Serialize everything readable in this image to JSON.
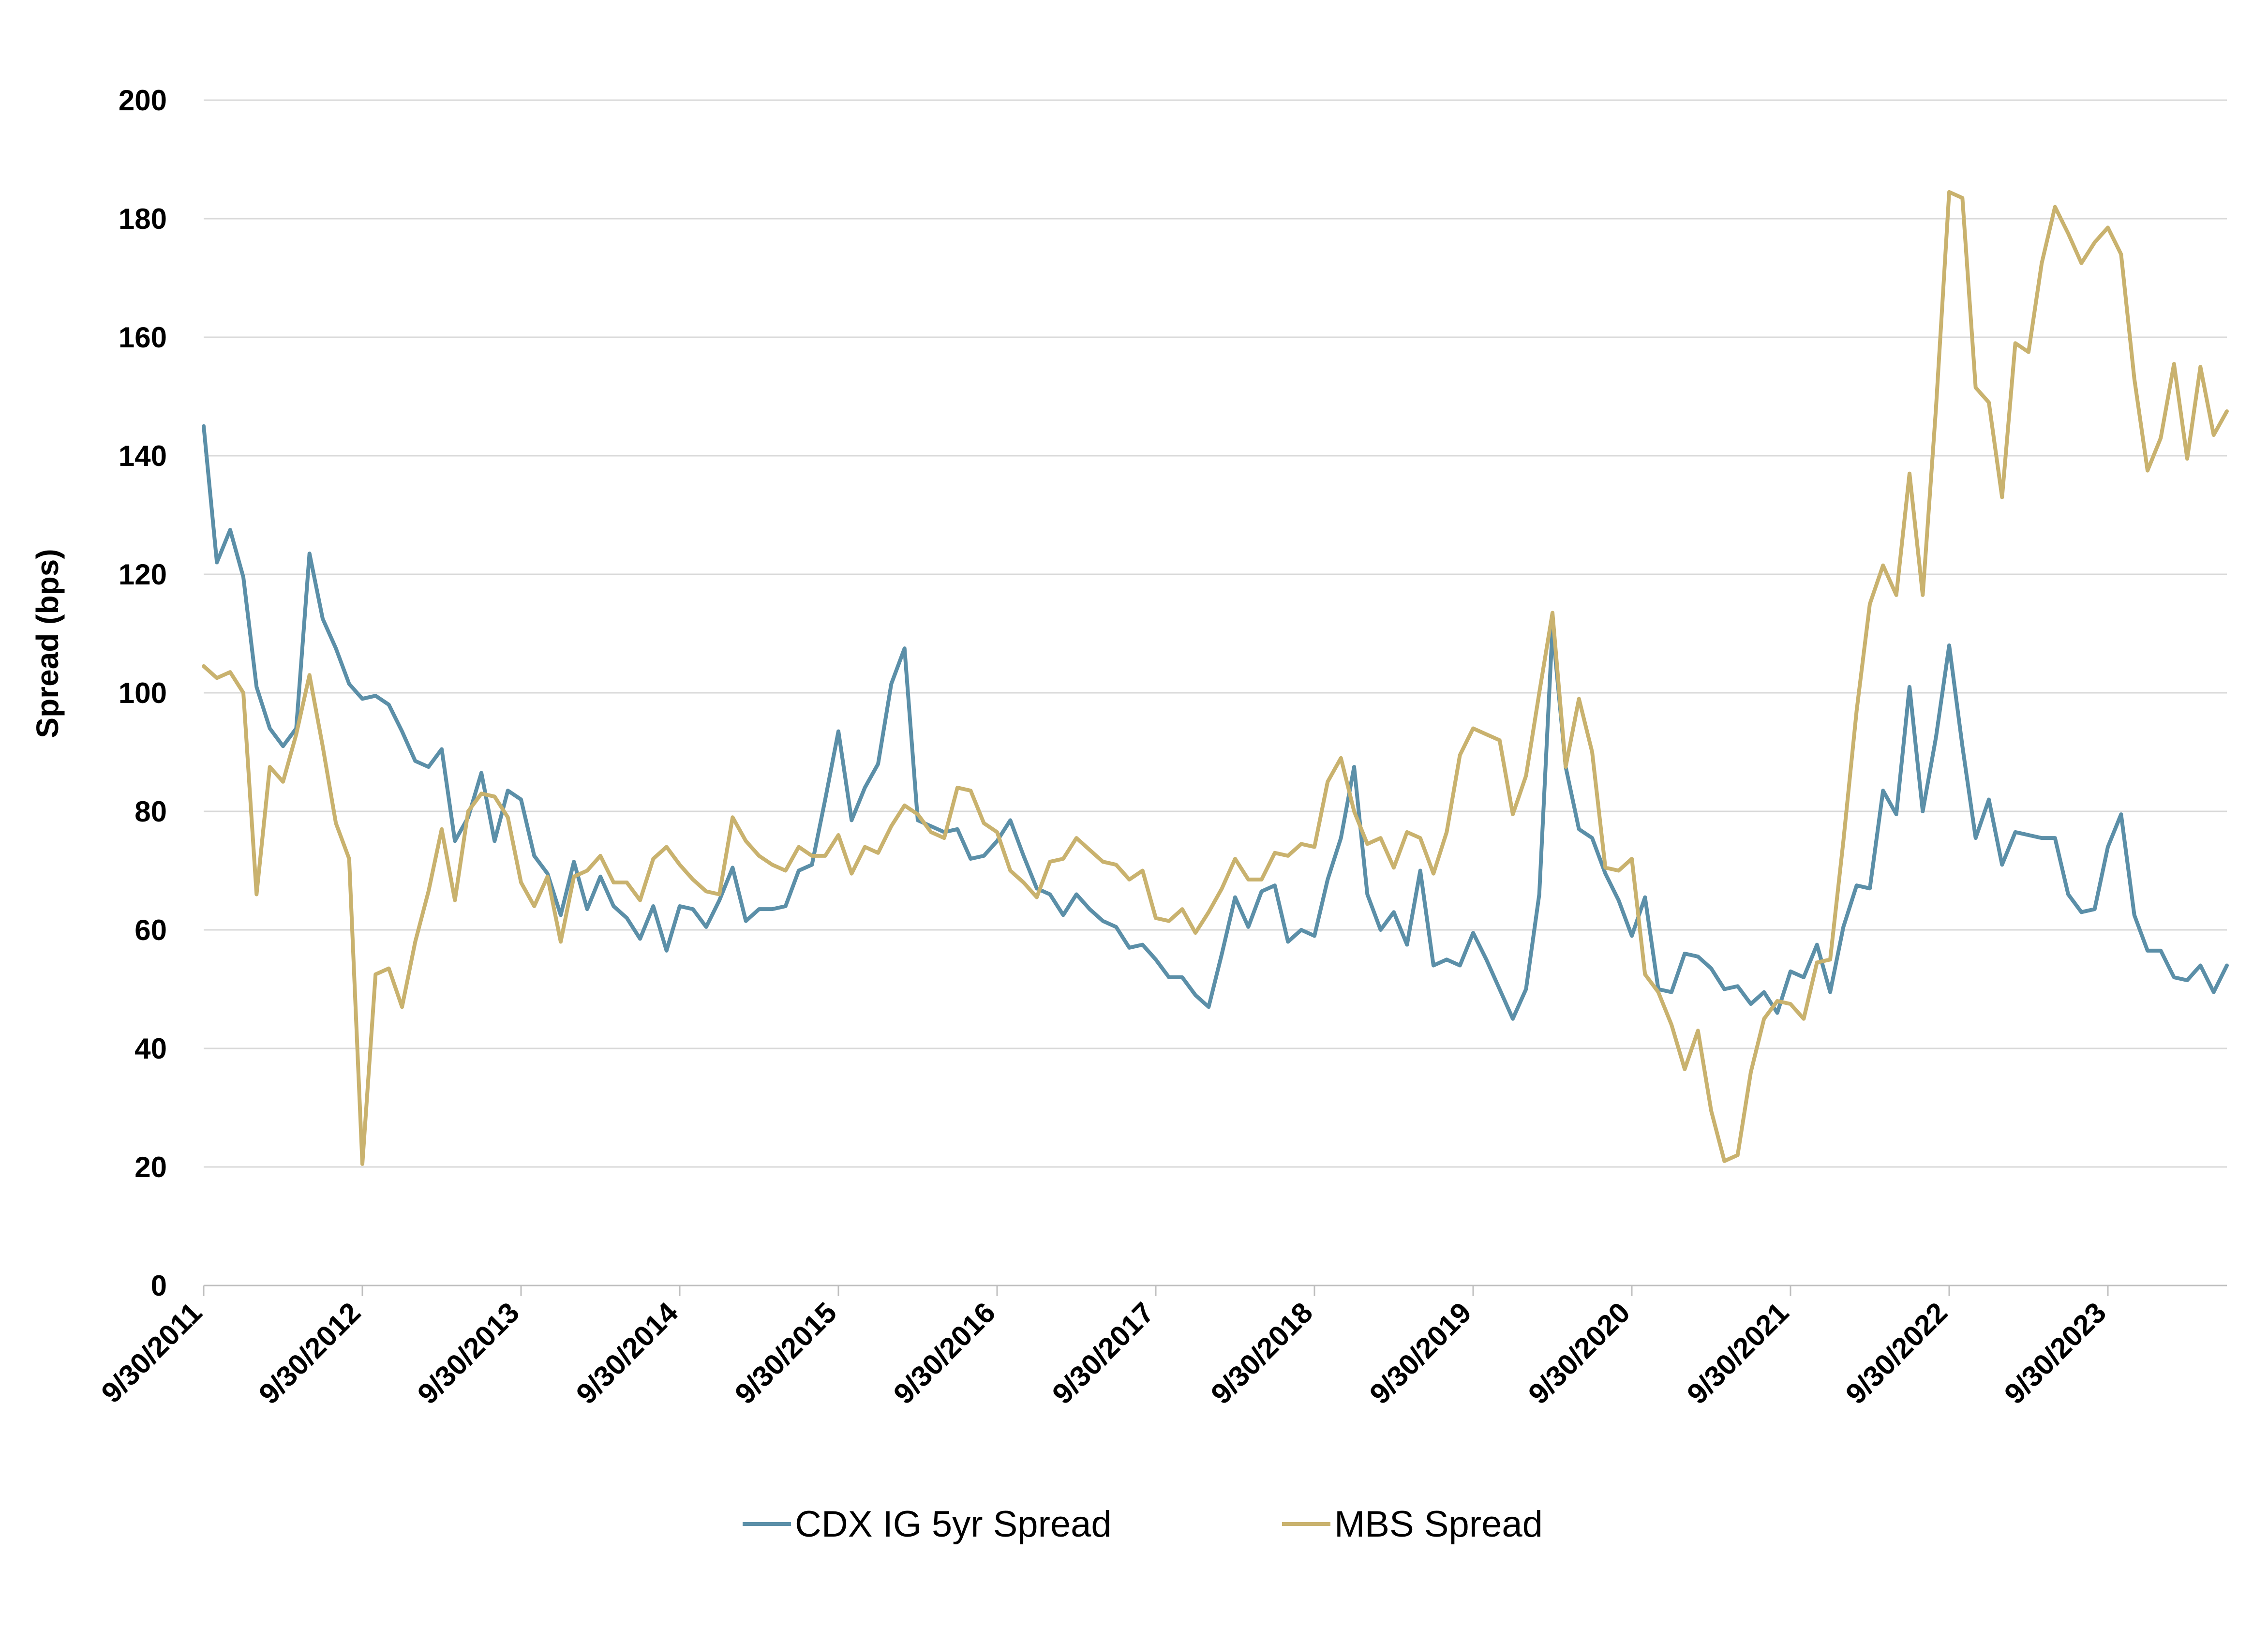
{
  "chart_data": {
    "type": "line",
    "title": "",
    "xlabel": "",
    "ylabel": "Spread (bps)",
    "ylim": [
      0,
      200
    ],
    "yticks": [
      0,
      20,
      40,
      60,
      80,
      100,
      120,
      140,
      160,
      180,
      200
    ],
    "y_tick_labels": [
      "0",
      "20",
      "40",
      "60",
      "80",
      "100",
      "120",
      "140",
      "160",
      "180",
      "200"
    ],
    "x_tick_labels": [
      "9/30/2011",
      "9/30/2012",
      "9/30/2013",
      "9/30/2014",
      "9/30/2015",
      "9/30/2016",
      "9/30/2017",
      "9/30/2018",
      "9/30/2019",
      "9/30/2020",
      "9/30/2021",
      "9/30/2022",
      "9/30/2023"
    ],
    "x_start": "9/30/2011",
    "frequency": "monthly",
    "grid": true,
    "legend_position": "bottom",
    "series": [
      {
        "name": "CDX IG 5yr Spread",
        "color": "#5b8fa8",
        "values": [
          145.0,
          122.0,
          127.5,
          119.5,
          101.0,
          94.0,
          91.0,
          94.0,
          123.5,
          112.5,
          107.5,
          101.5,
          99.0,
          99.5,
          98.0,
          93.5,
          88.5,
          87.5,
          90.5,
          75.0,
          79.0,
          86.5,
          75.0,
          83.5,
          82.0,
          72.5,
          69.5,
          62.5,
          71.5,
          63.5,
          69.0,
          64.0,
          62.0,
          58.5,
          64.0,
          56.5,
          64.0,
          63.5,
          60.5,
          65.0,
          70.5,
          61.5,
          63.5,
          63.5,
          64.0,
          70.0,
          71.0,
          82.0,
          93.5,
          78.5,
          84.0,
          88.0,
          101.5,
          107.5,
          78.5,
          77.5,
          76.5,
          77.0,
          72.0,
          72.5,
          75.0,
          78.5,
          72.5,
          67.0,
          66.0,
          62.5,
          66.0,
          63.5,
          61.5,
          60.5,
          57.0,
          57.5,
          55.0,
          52.0,
          52.0,
          49.0,
          47.0,
          56.0,
          65.5,
          60.5,
          66.5,
          67.5,
          58.0,
          60.0,
          59.0,
          68.5,
          75.5,
          87.5,
          66.0,
          60.0,
          63.0,
          57.5,
          70.0,
          54.0,
          55.0,
          54.0,
          59.5,
          55.0,
          50.0,
          45.0,
          50.0,
          66.0,
          111.0,
          87.5,
          77.0,
          75.5,
          69.5,
          65.0,
          59.0,
          65.5,
          50.0,
          49.5,
          56.0,
          55.5,
          53.5,
          50.0,
          50.5,
          47.5,
          49.5,
          46.0,
          53.0,
          52.0,
          57.5,
          49.5,
          60.5,
          67.5,
          67.0,
          83.5,
          79.5,
          101.0,
          80.0,
          92.5,
          108.0,
          91.0,
          75.5,
          82.0,
          71.0,
          76.5,
          76.0,
          75.5,
          75.5,
          66.0,
          63.0,
          63.5,
          74.0,
          79.5,
          62.5,
          56.5,
          56.5,
          52.0,
          51.5,
          54.0,
          49.5,
          54.0
        ],
        "max_month_offset": 153
      },
      {
        "name": "MBS Spread",
        "color": "#c9b26e",
        "values": [
          104.5,
          102.5,
          103.5,
          100.0,
          66.0,
          87.5,
          85.0,
          93.0,
          103.0,
          91.0,
          78.0,
          72.0,
          20.5,
          52.5,
          53.5,
          47.0,
          58.0,
          66.5,
          77.0,
          65.0,
          80.0,
          83.0,
          82.5,
          79.0,
          68.0,
          64.0,
          69.0,
          58.0,
          69.0,
          70.0,
          72.5,
          68.0,
          68.0,
          65.0,
          72.0,
          74.0,
          71.0,
          68.5,
          66.5,
          66.0,
          79.0,
          75.0,
          72.5,
          71.0,
          70.0,
          74.0,
          72.5,
          72.5,
          76.0,
          69.5,
          74.0,
          73.0,
          77.5,
          81.0,
          79.5,
          76.5,
          75.5,
          84.0,
          83.5,
          78.0,
          76.5,
          70.0,
          68.0,
          65.5,
          71.5,
          72.0,
          75.5,
          73.5,
          71.5,
          71.0,
          68.5,
          70.0,
          62.0,
          61.5,
          63.5,
          59.5,
          63.0,
          67.0,
          72.0,
          68.5,
          68.5,
          73.0,
          72.5,
          74.5,
          74.0,
          85.0,
          89.0,
          80.0,
          74.5,
          75.5,
          70.5,
          76.5,
          75.5,
          69.5,
          76.5,
          89.5,
          94.0,
          93.0,
          92.0,
          79.5,
          86.0,
          100.0,
          113.5,
          87.5,
          99.0,
          90.0,
          70.5,
          70.0,
          72.0,
          52.5,
          49.5,
          44.0,
          36.5,
          43.0,
          29.5,
          21.0,
          22.0,
          36.0,
          45.0,
          48.0,
          47.5,
          45.0,
          54.5,
          55.0,
          75.0,
          97.0,
          115.0,
          121.5,
          116.5,
          137.0,
          116.5,
          148.0,
          184.5,
          183.5,
          151.5,
          149.0,
          133.0,
          159.0,
          157.5,
          172.5,
          182.0,
          177.5,
          172.5,
          176.0,
          178.5,
          174.0,
          153.0,
          137.5,
          143.0,
          155.5,
          139.5,
          155.0,
          143.5,
          147.5
        ],
        "max_month_offset": 153
      }
    ]
  }
}
